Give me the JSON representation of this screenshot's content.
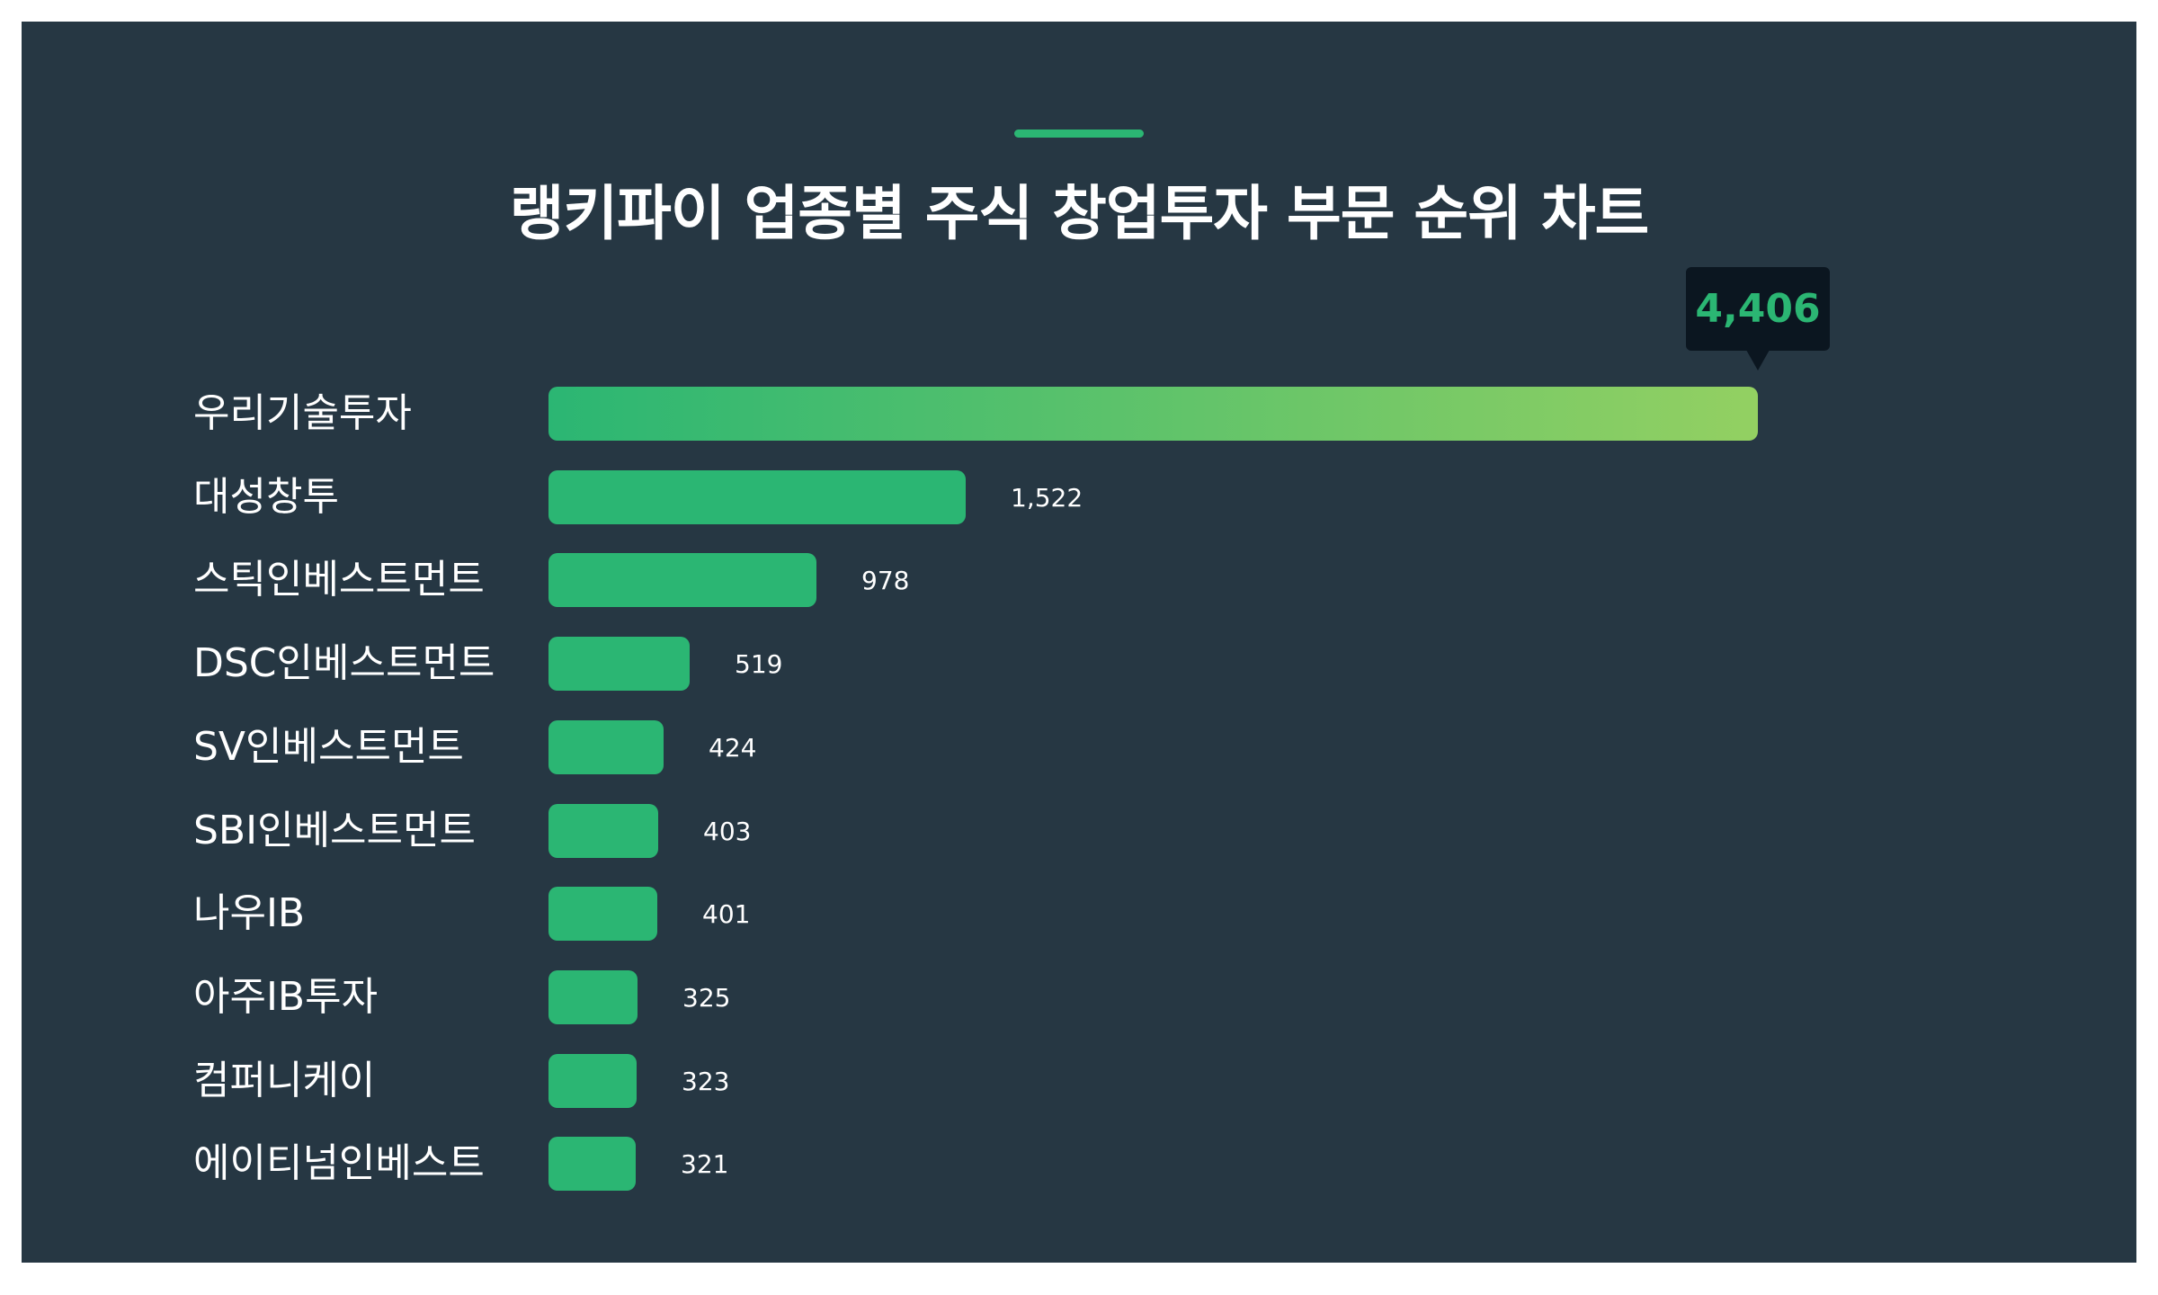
{
  "colors": {
    "background": "#263743",
    "bar": "#2bb673",
    "bar_gradient_end": "#93d062",
    "tooltip_bg": "#0b1620",
    "tooltip_text": "#2bb673",
    "text": "#ffffff"
  },
  "header": {
    "title": "랭키파이 업종별 주식 창업투자 부문 순위 차트"
  },
  "tooltip": {
    "value": "4,406"
  },
  "rows": [
    {
      "label": "우리기술투자",
      "value": "4,406"
    },
    {
      "label": "대성창투",
      "value": "1,522"
    },
    {
      "label": "스틱인베스트먼트",
      "value": "978"
    },
    {
      "label": "DSC인베스트먼트",
      "value": "519"
    },
    {
      "label": "SV인베스트먼트",
      "value": "424"
    },
    {
      "label": "SBI인베스트먼트",
      "value": "403"
    },
    {
      "label": "나우IB",
      "value": "401"
    },
    {
      "label": "아주IB투자",
      "value": "325"
    },
    {
      "label": "컴퍼니케이",
      "value": "323"
    },
    {
      "label": "에이티넘인베스트",
      "value": "321"
    }
  ],
  "chart_data": {
    "type": "bar",
    "orientation": "horizontal",
    "title": "랭키파이 업종별 주식 창업투자 부문 순위 차트",
    "categories": [
      "우리기술투자",
      "대성창투",
      "스틱인베스트먼트",
      "DSC인베스트먼트",
      "SV인베스트먼트",
      "SBI인베스트먼트",
      "나우IB",
      "아주IB투자",
      "컴퍼니케이",
      "에이티넘인베스트"
    ],
    "values": [
      4406,
      1522,
      978,
      519,
      424,
      403,
      401,
      325,
      323,
      321
    ],
    "xlabel": "",
    "ylabel": "",
    "grid": false,
    "legend": null,
    "annotations": [
      {
        "category": "우리기술투자",
        "text": "4,406",
        "style": "tooltip"
      }
    ]
  }
}
